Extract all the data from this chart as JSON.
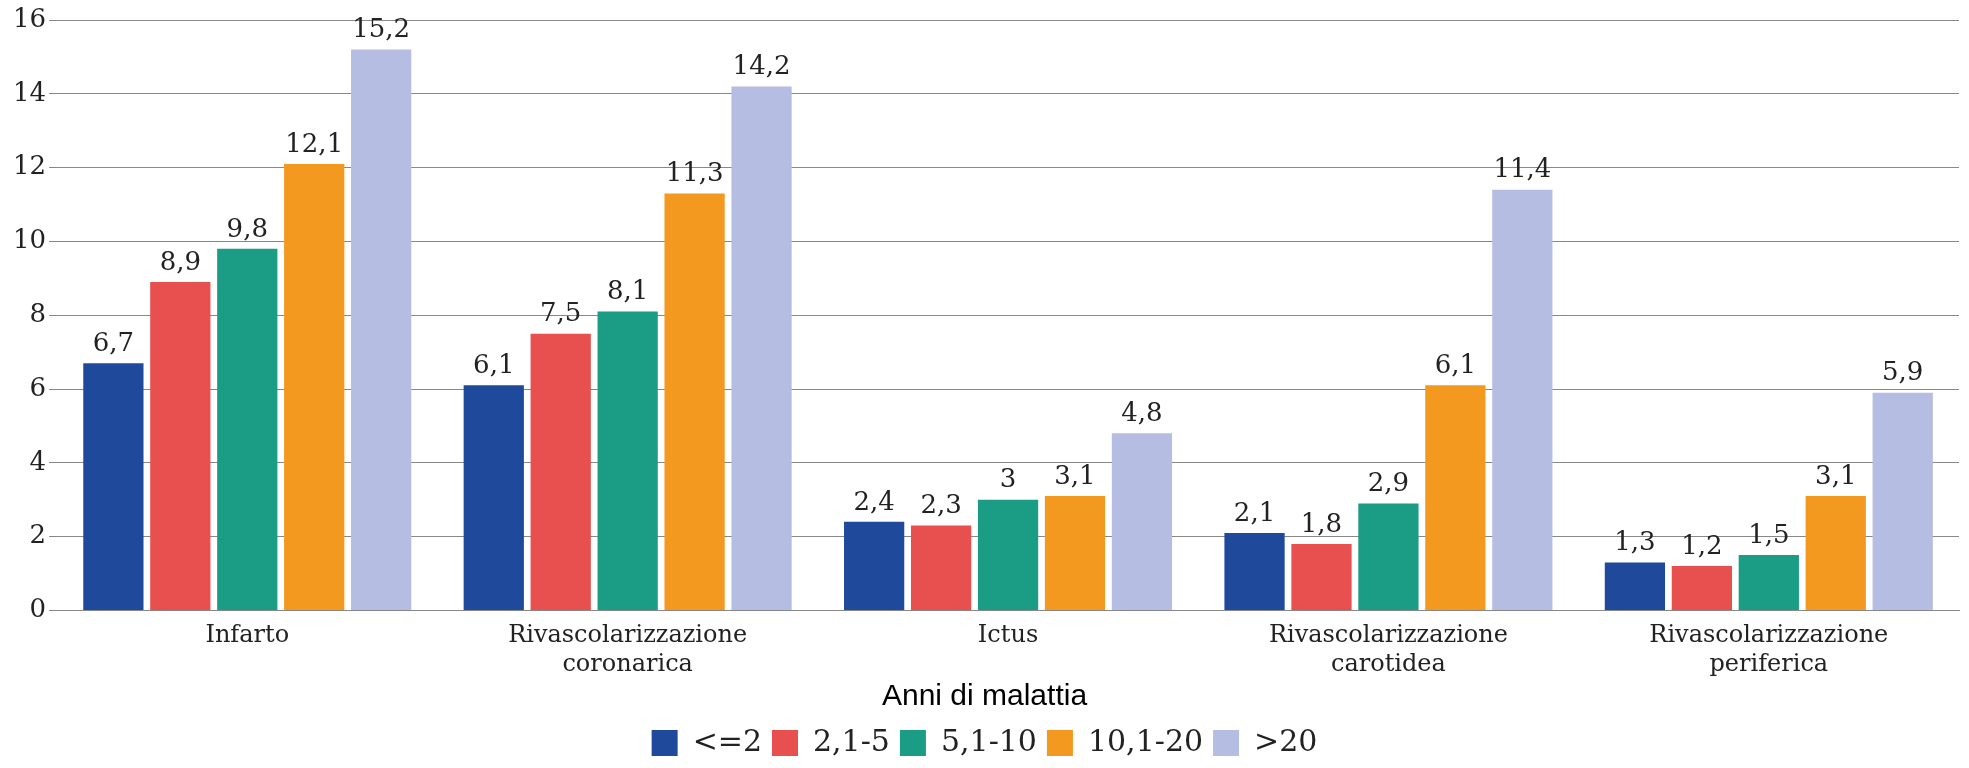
{
  "chart_data": {
    "type": "bar",
    "categories": [
      "Infarto",
      "Rivascolarizzazione coronarica",
      "Ictus",
      "Rivascolarizzazione carotidea",
      "Rivascolarizzazione periferica"
    ],
    "series": [
      {
        "name": "<=2",
        "color": "#1f4a9c",
        "values": [
          6.7,
          6.1,
          2.4,
          2.1,
          1.3
        ],
        "value_labels": [
          "6,7",
          "6,1",
          "2,4",
          "2,1",
          "1,3"
        ]
      },
      {
        "name": "2,1-5",
        "color": "#e84f4f",
        "values": [
          8.9,
          7.5,
          2.3,
          1.8,
          1.2
        ],
        "value_labels": [
          "8,9",
          "7,5",
          "2,3",
          "1,8",
          "1,2"
        ]
      },
      {
        "name": "5,1-10",
        "color": "#1b9c85",
        "values": [
          9.8,
          8.1,
          3,
          2.9,
          1.5
        ],
        "value_labels": [
          "9,8",
          "8,1",
          "3",
          "2,9",
          "1,5"
        ]
      },
      {
        "name": "10,1-20",
        "color": "#f4991f",
        "values": [
          12.1,
          11.3,
          3.1,
          6.1,
          3.1
        ],
        "value_labels": [
          "12,1",
          "11,3",
          "3,1",
          "6,1",
          "3,1"
        ]
      },
      {
        "name": ">20",
        "color": "#b5bde2",
        "values": [
          15.2,
          14.2,
          4.8,
          11.4,
          5.9
        ],
        "value_labels": [
          "15,2",
          "14,2",
          "4,8",
          "11,4",
          "5,9"
        ]
      }
    ],
    "ylim": [
      0,
      16
    ],
    "yticks": [
      0,
      2,
      4,
      6,
      8,
      10,
      12,
      14,
      16
    ],
    "grid": "y",
    "legend": "bottom",
    "legend_title": "Anni di malattia"
  }
}
